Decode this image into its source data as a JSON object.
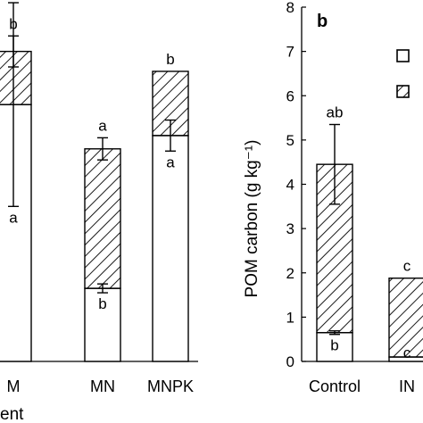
{
  "chart_data": [
    {
      "type": "bar",
      "stacked": true,
      "categories": [
        "M",
        "MN",
        "MNPK"
      ],
      "xlabel": "ent",
      "ylim": [
        0,
        8
      ],
      "series": [
        {
          "pattern": "open",
          "values": [
            5.8,
            1.65,
            5.1
          ],
          "errors": [
            2.3,
            0.1,
            0.35
          ],
          "letters": [
            "a",
            "b",
            "a"
          ]
        },
        {
          "pattern": "hatched",
          "values": [
            1.2,
            3.15,
            1.45
          ],
          "errors": [
            0.35,
            0.25,
            0.0
          ],
          "letters": [
            "b",
            "a",
            "b"
          ]
        }
      ]
    },
    {
      "type": "bar",
      "stacked": true,
      "panel_label": "b",
      "categories": [
        "Control",
        "IN"
      ],
      "ylabel": "POM carbon (g kg⁻¹)",
      "ylim": [
        0,
        8
      ],
      "yticks": [
        "0",
        "1",
        "2",
        "3",
        "4",
        "5",
        "6",
        "7",
        "8"
      ],
      "series": [
        {
          "pattern": "open",
          "values": [
            0.65,
            0.1
          ],
          "errors": [
            0.04,
            0.0
          ],
          "letters": [
            "b",
            "c"
          ]
        },
        {
          "pattern": "hatched",
          "values": [
            3.8,
            1.78
          ],
          "errors": [
            0.9,
            0.0
          ],
          "letters": [
            "ab",
            "c"
          ]
        }
      ]
    }
  ]
}
